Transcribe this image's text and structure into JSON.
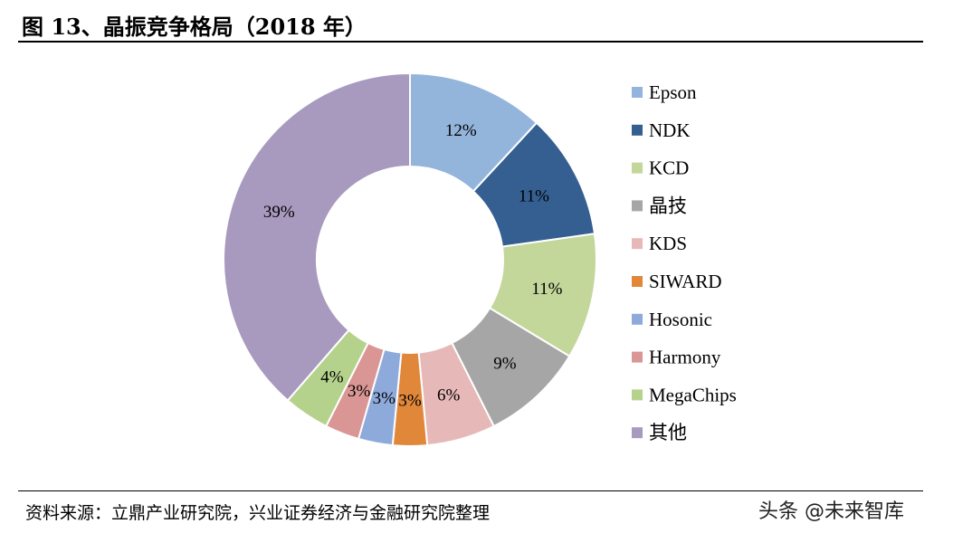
{
  "header": {
    "title": "图 13、晶振竞争格局（2018 年）"
  },
  "footer": {
    "source": "资料来源：立鼎产业研究院，兴业证券经济与金融研究院整理"
  },
  "watermark": {
    "text": "头条 @未来智库"
  },
  "chart_data": {
    "type": "pie",
    "variant": "donut",
    "title": "晶振竞争格局（2018 年）",
    "legend_position": "right",
    "unit": "%",
    "slices": [
      {
        "name": "Epson",
        "value": 12,
        "label": "12%",
        "color": "#94b5db"
      },
      {
        "name": "NDK",
        "value": 11,
        "label": "11%",
        "color": "#355f91"
      },
      {
        "name": "KCD",
        "value": 11,
        "label": "11%",
        "color": "#c3d79b"
      },
      {
        "name": "晶技",
        "value": 9,
        "label": "9%",
        "color": "#a6a6a6"
      },
      {
        "name": "KDS",
        "value": 6,
        "label": "6%",
        "color": "#e6b9b8"
      },
      {
        "name": "SIWARD",
        "value": 3,
        "label": "3%",
        "color": "#e0873a"
      },
      {
        "name": "Hosonic",
        "value": 3,
        "label": "3%",
        "color": "#8eaadb"
      },
      {
        "name": "Harmony",
        "value": 3,
        "label": "3%",
        "color": "#d99694"
      },
      {
        "name": "MegaChips",
        "value": 4,
        "label": "4%",
        "color": "#b5d28c"
      },
      {
        "name": "其他",
        "value": 39,
        "label": "39%",
        "color": "#a899bf"
      }
    ]
  }
}
